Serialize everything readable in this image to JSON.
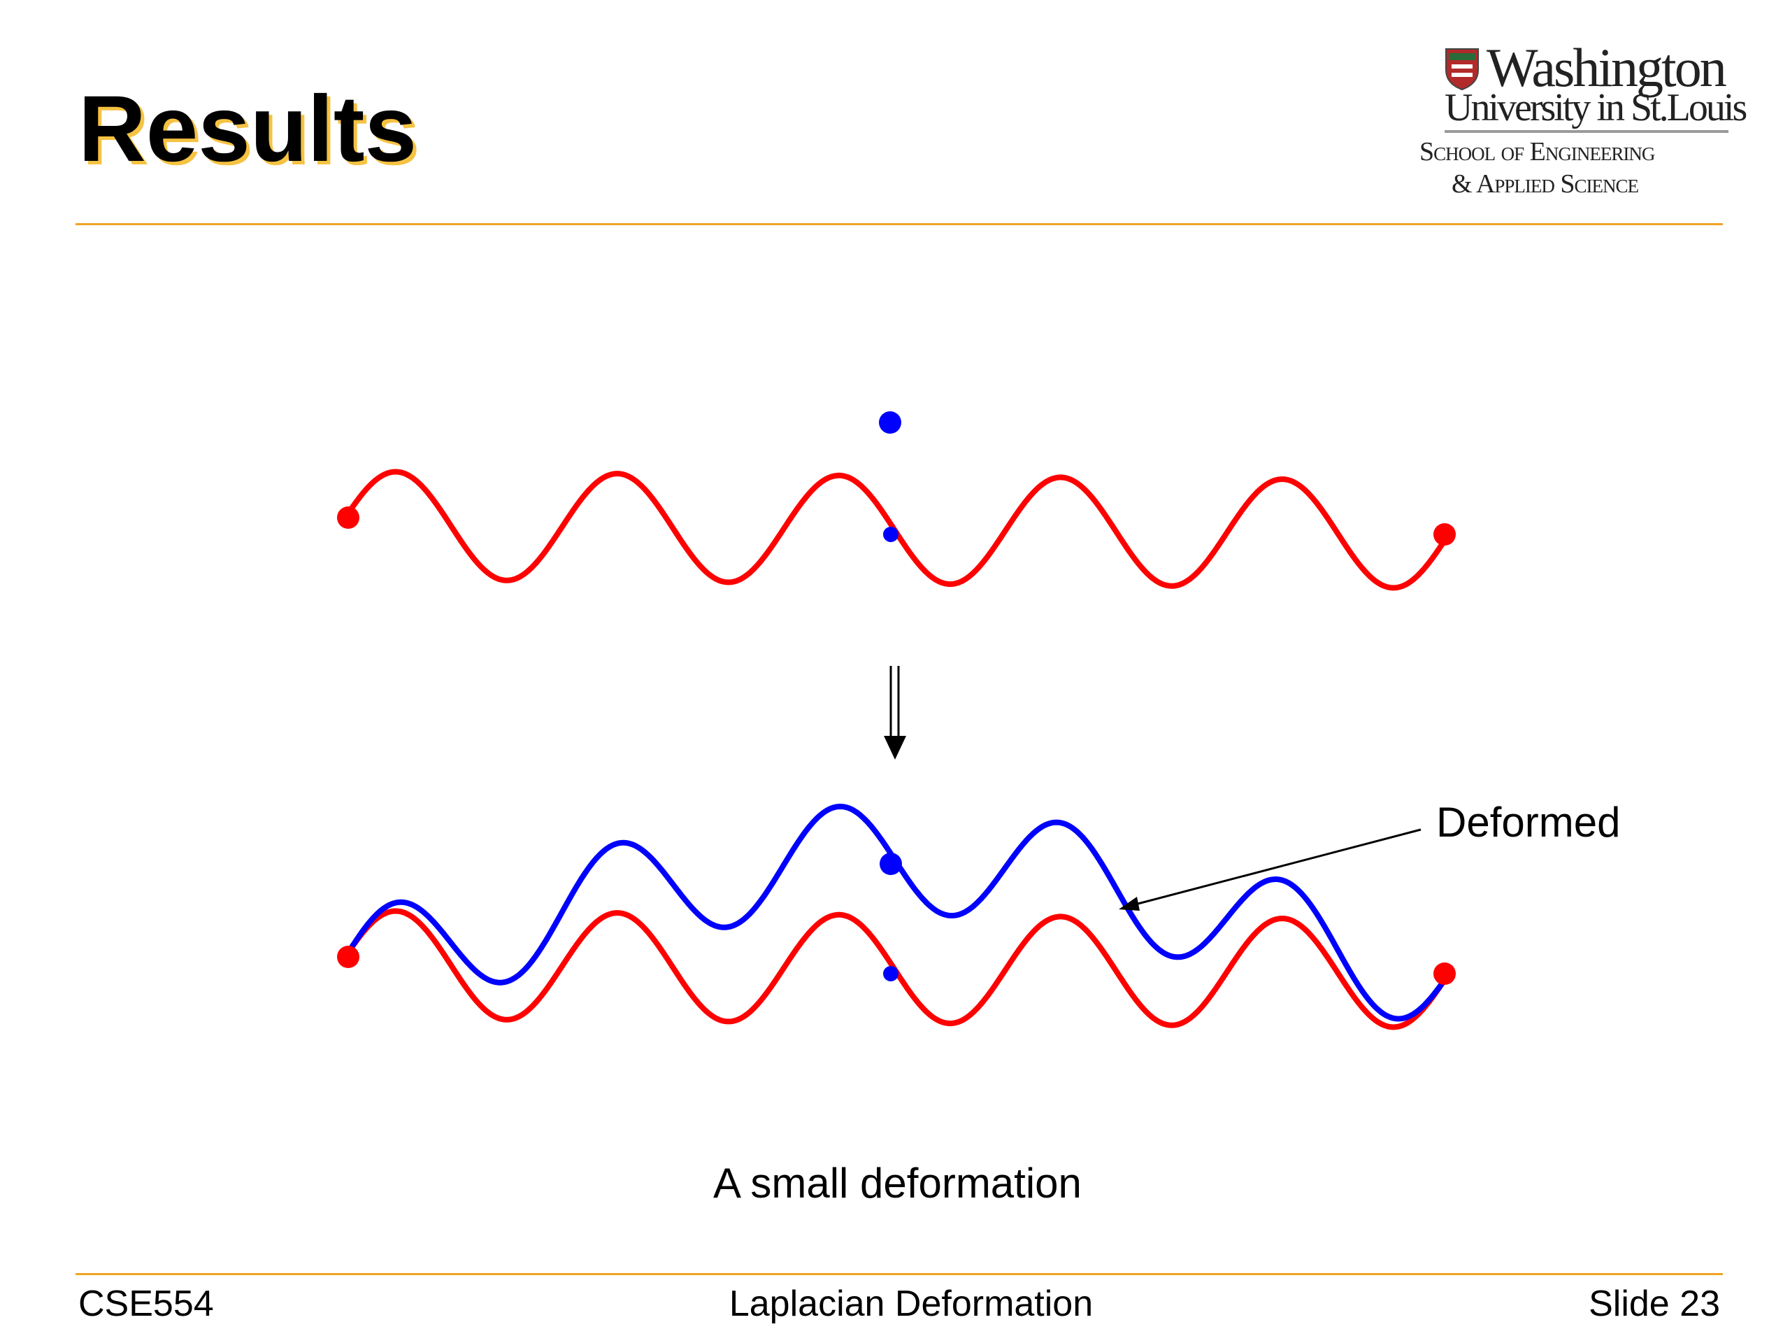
{
  "slide": {
    "title": "Results",
    "logo": {
      "line1": "Washington",
      "line2": "University in St.Louis",
      "line3": "School of Engineering",
      "line4": "& Applied Science"
    },
    "labels": {
      "deformed": "Deformed",
      "caption": "A small deformation"
    },
    "footer": {
      "course": "CSE554",
      "topic": "Laplacian Deformation",
      "slide_number": "Slide 23"
    }
  },
  "colors": {
    "accent_rule": "#f0a326",
    "title_shadow": "#f5c242",
    "original_curve": "#ff0000",
    "deformed_curve": "#0000ff",
    "handle_point": "#0000ff",
    "anchor_point": "#ff0000"
  },
  "icons": {
    "logo_crest": "university-crest-icon",
    "arrow": "down-double-arrow-icon"
  }
}
